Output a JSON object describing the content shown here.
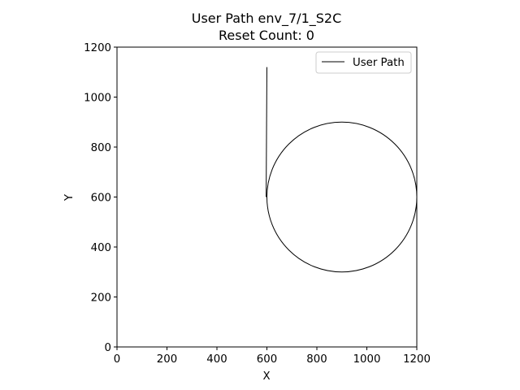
{
  "chart_data": {
    "type": "line",
    "title": "User Path env_7/1_S2C",
    "subtitle": "Reset Count: 0",
    "xlabel": "X",
    "ylabel": "Y",
    "xlim": [
      0,
      1200
    ],
    "ylim": [
      0,
      1200
    ],
    "xticks": [
      0,
      200,
      400,
      600,
      800,
      1000,
      1200
    ],
    "yticks": [
      0,
      200,
      400,
      600,
      800,
      1000,
      1200
    ],
    "grid": false,
    "legend_position": "top-right",
    "series": [
      {
        "name": "User Path",
        "color": "#000000",
        "segments": [
          {
            "kind": "line",
            "points": [
              [
                600,
                1120
              ],
              [
                597,
                600
              ]
            ]
          },
          {
            "kind": "circle",
            "center": [
              900,
              600
            ],
            "radius": 300
          }
        ]
      }
    ]
  }
}
